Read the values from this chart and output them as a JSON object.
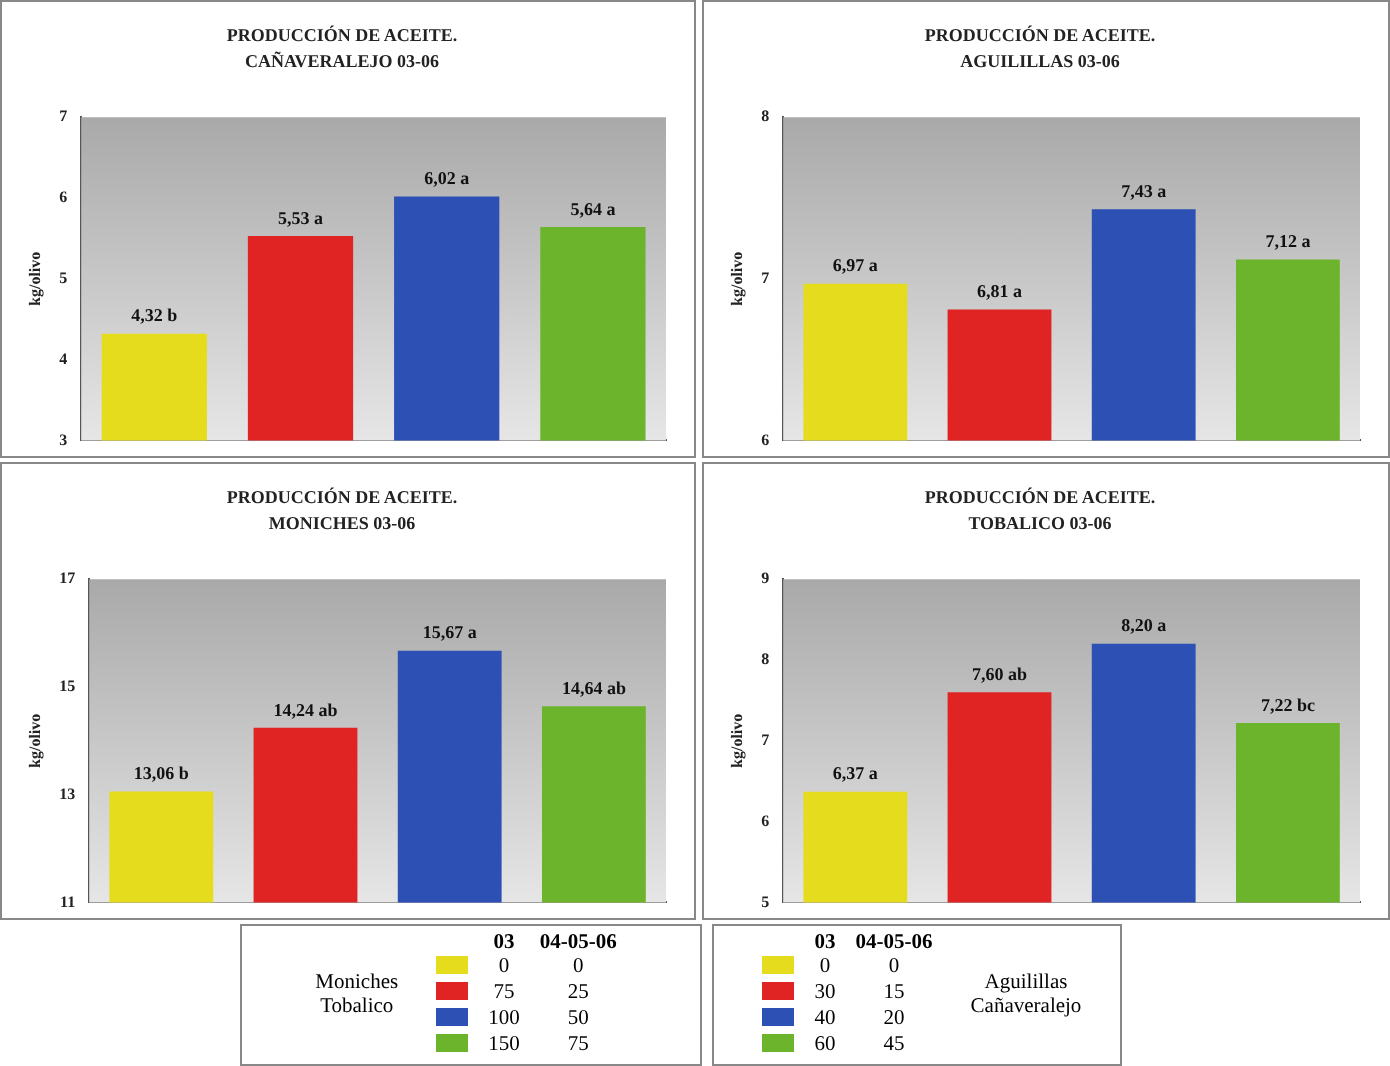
{
  "chart_data": [
    {
      "type": "bar",
      "title": "PRODUCCIÓN DE ACEITE.",
      "subtitle": "CAÑAVERALEJO 03-06",
      "ylabel": "kg/olivo",
      "categories": [
        null,
        null,
        null,
        null
      ],
      "values": [
        4.32,
        5.53,
        6.02,
        5.64
      ],
      "colors": [
        "#e4dc1c",
        "#e02424",
        "#2c50b4",
        "#6cb42c"
      ],
      "value_labels": [
        "4,32 b",
        "5,53 a",
        "6,02 a",
        "5,64 a"
      ],
      "ylim": [
        3,
        7
      ],
      "yticks": [
        3,
        4,
        5,
        6,
        7
      ],
      "tick_labels": "y",
      "grid": false,
      "legend": false
    },
    {
      "type": "bar",
      "title": "PRODUCCIÓN DE ACEITE.",
      "subtitle": "AGUILILLAS 03-06",
      "ylabel": "kg/olivo",
      "categories": [
        null,
        null,
        null,
        null
      ],
      "values": [
        6.97,
        6.81,
        7.43,
        7.12
      ],
      "colors": [
        "#e4dc1c",
        "#e02424",
        "#2c50b4",
        "#6cb42c"
      ],
      "value_labels": [
        "6,97 a",
        "6,81 a",
        "7,43 a",
        "7,12 a"
      ],
      "ylim": [
        6,
        8
      ],
      "yticks": [
        6,
        7,
        8
      ],
      "tick_labels": "y",
      "grid": false,
      "legend": false
    },
    {
      "type": "bar",
      "title": "PRODUCCIÓN DE ACEITE.",
      "subtitle": "MONICHES 03-06",
      "ylabel": "kg/olivo",
      "categories": [
        null,
        null,
        null,
        null
      ],
      "values": [
        13.06,
        14.24,
        15.67,
        14.64
      ],
      "colors": [
        "#e4dc1c",
        "#e02424",
        "#2c50b4",
        "#6cb42c"
      ],
      "value_labels": [
        "13,06 b",
        "14,24 ab",
        "15,67 a",
        "14,64 ab"
      ],
      "ylim": [
        11,
        17
      ],
      "yticks": [
        11,
        13,
        15,
        17
      ],
      "tick_labels": "y",
      "grid": false,
      "legend": false
    },
    {
      "type": "bar",
      "title": "PRODUCCIÓN DE ACEITE.",
      "subtitle": "TOBALICO 03-06",
      "ylabel": "kg/olivo",
      "categories": [
        null,
        null,
        null,
        null
      ],
      "values": [
        6.37,
        7.6,
        8.2,
        7.22
      ],
      "colors": [
        "#e4dc1c",
        "#e02424",
        "#2c50b4",
        "#6cb42c"
      ],
      "value_labels": [
        "6,37 a",
        "7,60 ab",
        "8,20 a",
        "7,22 bc"
      ],
      "ylim": [
        5,
        9
      ],
      "yticks": [
        5,
        6,
        7,
        8,
        9
      ],
      "tick_labels": "y",
      "grid": false,
      "legend": false
    },
    {
      "type": "other",
      "annotations": [
        "Moniches",
        "Tobalico"
      ],
      "categories": [
        "03",
        "04-05-06"
      ],
      "cell_labels": [
        [
          "0",
          "0"
        ],
        [
          "75",
          "25"
        ],
        [
          "100",
          "50"
        ],
        [
          "150",
          "75"
        ]
      ]
    },
    {
      "type": "other",
      "annotations": [
        "Aguilillas",
        "Cañaveralejo"
      ],
      "categories": [
        "03",
        "04-05-06"
      ],
      "cell_labels": [
        [
          "0",
          "0"
        ],
        [
          "30",
          "15"
        ],
        [
          "40",
          "20"
        ],
        [
          "60",
          "45"
        ]
      ]
    }
  ]
}
